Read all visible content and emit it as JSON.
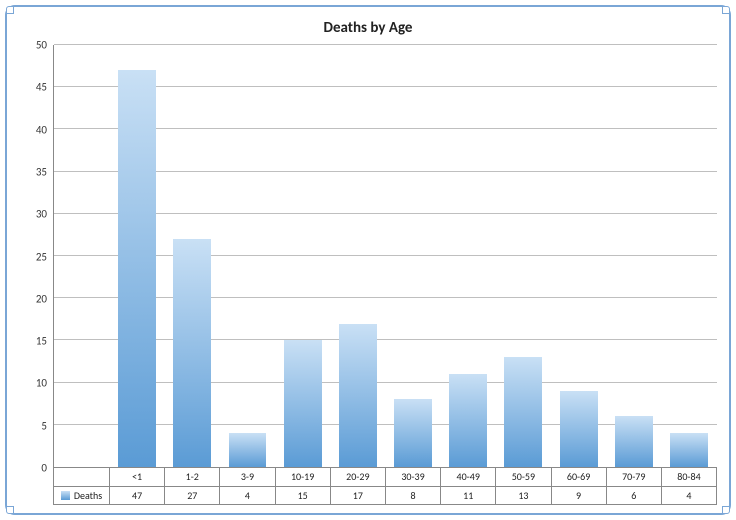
{
  "chart": {
    "type": "bar",
    "title": "Deaths by Age",
    "title_fontsize": 15,
    "series_name": "Deaths",
    "categories": [
      "<1",
      "1-2",
      "3-9",
      "10-19",
      "20-29",
      "30-39",
      "40-49",
      "50-59",
      "60-69",
      "70-79",
      "80-84"
    ],
    "values": [
      47,
      27,
      4,
      15,
      17,
      8,
      11,
      13,
      9,
      6,
      4
    ],
    "ylim": [
      0,
      50
    ],
    "ytick_step": 5,
    "bar_gradient_top": "#c9e0f5",
    "bar_gradient_bottom": "#5a9bd5",
    "grid_color": "#bfbfbf",
    "axis_color": "#888888",
    "frame_border_color": "#7aa6d6",
    "background_color": "#ffffff",
    "label_fontsize": 11,
    "table_fontsize": 10,
    "bar_width": 0.7
  }
}
